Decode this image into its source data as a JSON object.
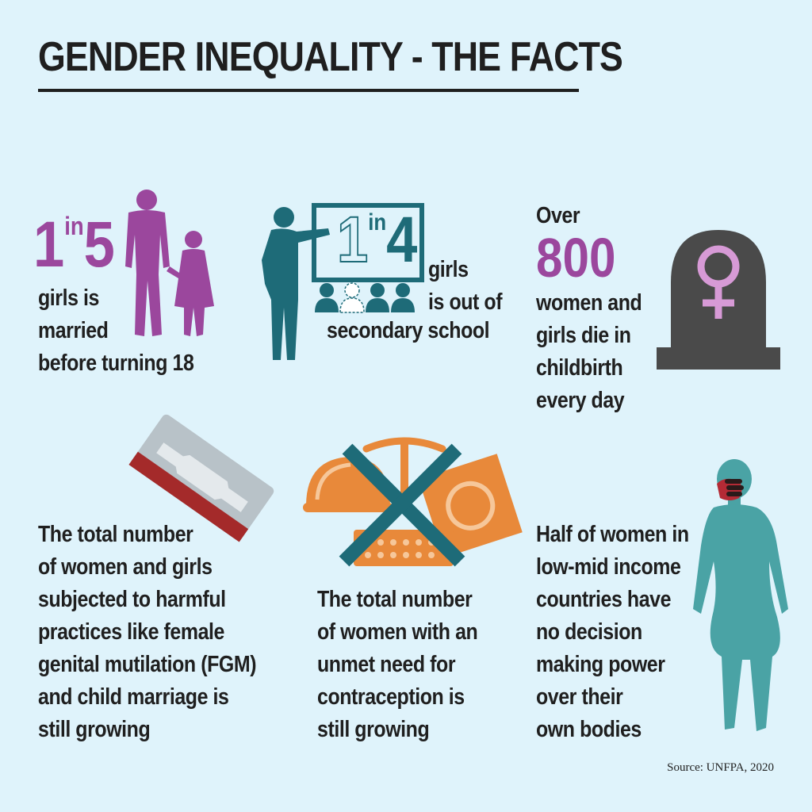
{
  "title": "GENDER INEQUALITY - THE FACTS",
  "facts": {
    "marriage": {
      "stat_num1": "1",
      "stat_in": "in",
      "stat_num2": "5",
      "lines": [
        "girls is",
        "married",
        "before turning 18"
      ]
    },
    "school": {
      "stat_num1": "1",
      "stat_in": "in",
      "stat_num2": "4",
      "lines_right": [
        "girls",
        "is out of"
      ],
      "line_bottom": "secondary school"
    },
    "childbirth": {
      "pre": "Over",
      "stat": "800",
      "lines": [
        "women and",
        "girls die in",
        "childbirth",
        "every day"
      ]
    },
    "fgm": {
      "lines": [
        "The total number",
        "of women and girls",
        "subjected to harmful",
        "practices like female",
        "genital mutilation (FGM)",
        "and child marriage is",
        "still growing"
      ]
    },
    "contraception": {
      "lines": [
        "The total number",
        "of women with an",
        "unmet need for",
        "contraception is",
        "still growing"
      ]
    },
    "bodily": {
      "lines": [
        "Half of women in",
        "low-mid income",
        "countries have",
        "no decision",
        "making power",
        "over their",
        "own bodies"
      ]
    }
  },
  "source": "Source: UNFPA, 2020",
  "colors": {
    "background": "#dff3fb",
    "purple": "#9b479d",
    "teal": "#1e6b78",
    "orange": "#e8893a",
    "gray": "#4a4a4a",
    "turquoise": "#4aa3a5"
  }
}
